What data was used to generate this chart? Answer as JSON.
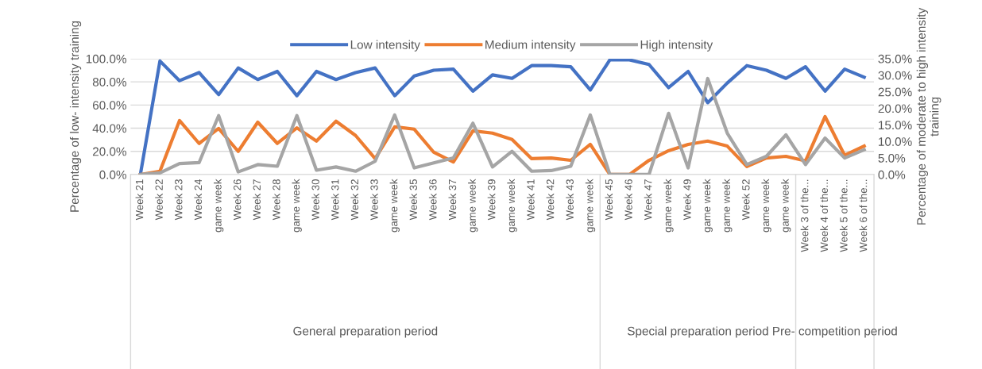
{
  "chart_data": {
    "type": "line",
    "categories": [
      "Week 21",
      "Week 22",
      "Week 23",
      "Week 24",
      "game week",
      "Week 26",
      "Week 27",
      "Week 28",
      "game week",
      "Week 30",
      "Week 31",
      "Week 32",
      "Week 33",
      "game week",
      "Week 35",
      "Week 36",
      "Week 37",
      "game week",
      "Week 39",
      "game week",
      "Week 41",
      "Week 42",
      "Week 43",
      "game week",
      "Week 45",
      "Week 46",
      "Week 47",
      "game week",
      "Week 49",
      "game week",
      "game week",
      "Week 52",
      "game week",
      "game week",
      "Week 3 of the...",
      "Week 4 of the...",
      "Week 5 of the...",
      "Week 6 of the..."
    ],
    "series": [
      {
        "name": "Low intensity",
        "color": "#4472c4",
        "values": [
          0,
          98,
          81,
          88,
          69,
          92,
          82,
          89,
          68,
          89,
          82,
          88,
          92,
          68,
          85,
          90,
          91,
          72,
          86,
          83,
          94,
          94,
          93,
          73,
          99,
          99,
          95,
          75,
          89,
          62,
          79,
          94,
          90,
          83,
          93,
          72,
          91,
          84
        ]
      },
      {
        "name": "Medium intensity",
        "color": "#ed7d31",
        "axis": "y2",
        "values": [
          0,
          1.0,
          16.3,
          9.4,
          13.9,
          7.0,
          15.8,
          9.4,
          14.1,
          10.1,
          16.1,
          11.8,
          4.8,
          14.4,
          13.7,
          6.7,
          3.8,
          13.2,
          12.5,
          10.6,
          4.8,
          5.0,
          4.3,
          9.1,
          0,
          0,
          4.3,
          7.2,
          9.1,
          10.1,
          8.6,
          2.4,
          5.0,
          5.5,
          4.1,
          17.5,
          5.8,
          8.6
        ]
      },
      {
        "name": "High intensity",
        "color": "#a5a5a5",
        "axis": "y2",
        "values": [
          0,
          0.5,
          3.3,
          3.6,
          17.8,
          0.8,
          3.0,
          2.5,
          17.8,
          1.3,
          2.3,
          1.0,
          4.0,
          18.0,
          2.0,
          3.5,
          5.0,
          15.5,
          2.3,
          7.0,
          1.0,
          1.2,
          2.5,
          18.0,
          0,
          0,
          0,
          18.5,
          2.0,
          29.0,
          12.5,
          3.0,
          5.5,
          12.0,
          3.0,
          11.0,
          5.0,
          7.5
        ]
      }
    ],
    "ylabel": "Percentage of low- intensity training",
    "y2label": "Percentage of moderate to high intensity training",
    "ylim": [
      0,
      100
    ],
    "yticks": [
      {
        "value": 0,
        "label": "0.0%"
      },
      {
        "value": 20,
        "label": "20.0%"
      },
      {
        "value": 40,
        "label": "40.0%"
      },
      {
        "value": 60,
        "label": "60.0%"
      },
      {
        "value": 80,
        "label": "80.0%"
      },
      {
        "value": 100,
        "label": "100.0%"
      }
    ],
    "y2lim": [
      0,
      35
    ],
    "y2ticks": [
      {
        "value": 0,
        "label": "0.0%"
      },
      {
        "value": 5,
        "label": "5.0%"
      },
      {
        "value": 10,
        "label": "10.0%"
      },
      {
        "value": 15,
        "label": "15.0%"
      },
      {
        "value": 20,
        "label": "20.0%"
      },
      {
        "value": 25,
        "label": "25.0%"
      },
      {
        "value": 30,
        "label": "30.0%"
      },
      {
        "value": 35,
        "label": "35.0%"
      }
    ],
    "annotations": [
      "General preparation period",
      "Special preparation period",
      "Pre- competition period"
    ],
    "grid": "y",
    "legend": "top",
    "marker": "none",
    "line_style": "solid"
  }
}
